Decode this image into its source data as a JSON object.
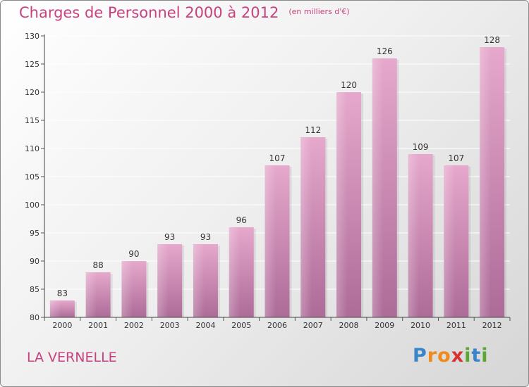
{
  "chart_data": {
    "type": "bar",
    "title": "Charges de Personnel 2000 à 2012",
    "subtitle": "(en milliers d'€)",
    "categories": [
      "2000",
      "2001",
      "2002",
      "2003",
      "2004",
      "2005",
      "2006",
      "2007",
      "2008",
      "2009",
      "2010",
      "2011",
      "2012"
    ],
    "values": [
      83,
      88,
      90,
      93,
      93,
      96,
      107,
      112,
      120,
      126,
      109,
      107,
      128
    ],
    "ylim": [
      80,
      130
    ],
    "yticks": [
      80,
      85,
      90,
      95,
      100,
      105,
      110,
      115,
      120,
      125,
      130
    ],
    "xlabel": "",
    "ylabel": "",
    "grid": true
  },
  "commune": "LA VERNELLE",
  "brand": {
    "letters": [
      "P",
      "r",
      "o",
      "x",
      "i",
      "t",
      "i"
    ],
    "colors": [
      "#3a84c9",
      "#f08a1c",
      "#f08a1c",
      "#d6322f",
      "#5aa832",
      "#3a84c9",
      "#5aa832"
    ]
  },
  "colors": {
    "accent": "#c8427f",
    "bar_top": "#e6a8cc",
    "bar_bottom": "#ad6b98",
    "grid": "#ffffff"
  }
}
